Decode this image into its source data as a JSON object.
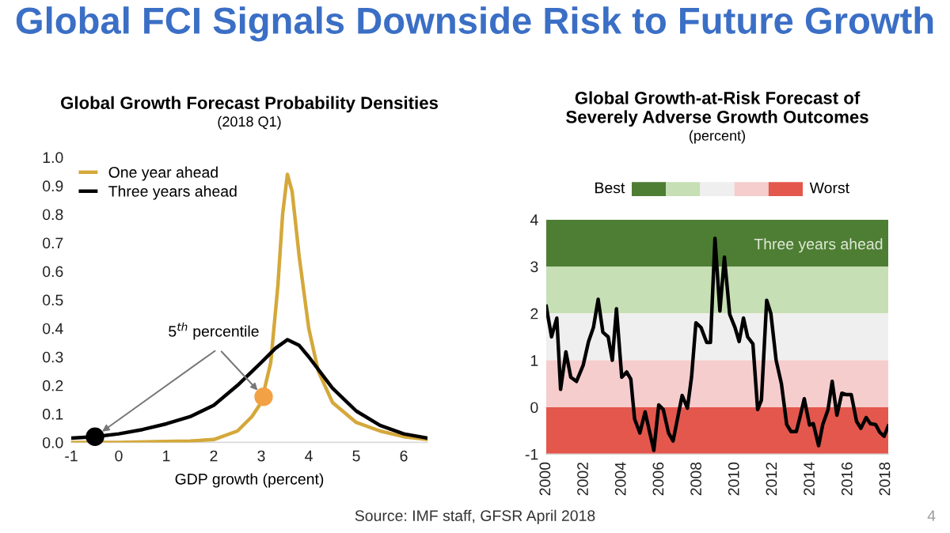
{
  "chart_data": [
    {
      "type": "other",
      "title": "Global FCI Signals Downside Risk to Future Growth",
      "annotations": [
        "Source: IMF staff, GFSR April 2018",
        "4"
      ]
    },
    {
      "type": "line",
      "title": "Global Growth Forecast Probability Densities",
      "subtitle": "(2018 Q1)",
      "xlabel": "GDP growth (percent)",
      "xlim": [
        -1,
        6.5
      ],
      "xticks": [
        -1,
        0,
        1,
        2,
        3,
        4,
        5,
        6
      ],
      "ylim": [
        0,
        1.0
      ],
      "yticks": [
        {
          "value": 0,
          "label": "0.0"
        },
        0.1,
        0.2,
        0.3,
        0.4,
        0.5,
        0.6,
        0.7,
        0.8,
        0.9,
        {
          "value": 1,
          "label": "1.0"
        }
      ],
      "legend": "top left",
      "grid": false,
      "annotations": [
        {
          "text": "5$^{th}$ percentile",
          "x": 3.05,
          "y": 0.16
        }
      ],
      "series": [
        {
          "name": "One year ahead",
          "color": "#d4a83a",
          "x": [
            -1,
            0,
            1,
            1.5,
            2,
            2.5,
            2.8,
            3.0,
            3.2,
            3.35,
            3.45,
            3.55,
            3.65,
            3.8,
            4.0,
            4.2,
            4.5,
            5.0,
            5.5,
            6.0,
            6.5
          ],
          "values": [
            0.0,
            0.0,
            0.003,
            0.005,
            0.01,
            0.04,
            0.09,
            0.14,
            0.28,
            0.55,
            0.8,
            0.94,
            0.88,
            0.65,
            0.4,
            0.25,
            0.14,
            0.07,
            0.04,
            0.02,
            0.01
          ]
        },
        {
          "name": "Three years ahead",
          "color": "#000000",
          "x": [
            -1,
            -0.5,
            0,
            0.5,
            1,
            1.5,
            2,
            2.5,
            3,
            3.3,
            3.55,
            3.8,
            4.0,
            4.5,
            5,
            5.5,
            6,
            6.5
          ],
          "values": [
            0.015,
            0.02,
            0.03,
            0.045,
            0.065,
            0.09,
            0.13,
            0.2,
            0.28,
            0.33,
            0.36,
            0.34,
            0.3,
            0.19,
            0.11,
            0.06,
            0.03,
            0.015
          ]
        },
        {
          "type": "scatter",
          "marker": "circle",
          "color": "#000000",
          "x": [
            -0.5
          ],
          "values": [
            0.02
          ]
        },
        {
          "type": "scatter",
          "marker": "circle",
          "color": "#f2a144",
          "x": [
            3.05
          ],
          "values": [
            0.16
          ]
        }
      ]
    },
    {
      "type": "line",
      "title": "Global Growth-at-Risk Forecast of\nSeverely Adverse Growth Outcomes",
      "subtitle": "(percent)",
      "xlim": [
        2000,
        2018.12
      ],
      "xticks": [
        2000,
        2002,
        2004,
        2006,
        2008,
        2010,
        2012,
        2014,
        2016,
        2018
      ],
      "ylim": [
        -1,
        4
      ],
      "yticks": [
        -1,
        0,
        1,
        2,
        3,
        4
      ],
      "legend": false,
      "grid": false,
      "annotations": [
        "Best",
        "Worst"
      ],
      "bands": [
        {
          "axis": "y",
          "from": 3,
          "to": 4,
          "color": "#4e7d34"
        },
        {
          "axis": "y",
          "from": 2,
          "to": 3,
          "color": "#c6dfb4"
        },
        {
          "axis": "y",
          "from": 1,
          "to": 2,
          "color": "#efefef"
        },
        {
          "axis": "y",
          "from": 0,
          "to": 1,
          "color": "#f5cdcd"
        },
        {
          "axis": "y",
          "from": -1,
          "to": 0,
          "color": "#e4574d"
        }
      ],
      "series": [
        {
          "name": "Three years ahead",
          "color": "#000000",
          "x": [
            2000,
            2000.28,
            2000.56,
            2000.76,
            2001.04,
            2001.3,
            2001.6,
            2001.96,
            2002.24,
            2002.5,
            2002.75,
            2003.0,
            2003.28,
            2003.5,
            2003.72,
            2004.0,
            2004.26,
            2004.48,
            2004.68,
            2004.96,
            2005.24,
            2005.46,
            2005.7,
            2005.96,
            2006.2,
            2006.48,
            2006.72,
            2007.0,
            2007.2,
            2007.48,
            2007.7,
            2007.93,
            2008.2,
            2008.5,
            2008.7,
            2008.94,
            2009.2,
            2009.44,
            2009.72,
            2010.0,
            2010.22,
            2010.45,
            2010.67,
            2010.95,
            2011.2,
            2011.4,
            2011.68,
            2011.9,
            2012.18,
            2012.46,
            2012.74,
            2012.97,
            2013.25,
            2013.45,
            2013.67,
            2013.95,
            2014.15,
            2014.43,
            2014.65,
            2014.93,
            2015.15,
            2015.4,
            2015.66,
            2015.88,
            2016.16,
            2016.44,
            2016.67,
            2016.95,
            2017.17,
            2017.45,
            2017.68,
            2017.9,
            2018.12
          ],
          "values": [
            2.15,
            1.5,
            1.9,
            0.38,
            1.18,
            0.64,
            0.55,
            0.9,
            1.4,
            1.7,
            2.3,
            1.6,
            1.5,
            1.0,
            2.1,
            0.64,
            0.75,
            0.6,
            -0.25,
            -0.55,
            -0.1,
            -0.5,
            -0.92,
            0.05,
            -0.05,
            -0.55,
            -0.72,
            -0.15,
            0.25,
            -0.02,
            0.65,
            1.8,
            1.7,
            1.38,
            1.38,
            3.6,
            2.05,
            3.2,
            1.98,
            1.7,
            1.4,
            1.9,
            1.5,
            1.35,
            -0.05,
            0.15,
            2.28,
            2.0,
            1.0,
            0.5,
            -0.37,
            -0.52,
            -0.52,
            -0.2,
            0.18,
            -0.38,
            -0.35,
            -0.82,
            -0.37,
            -0.05,
            0.55,
            -0.17,
            0.3,
            0.27,
            0.27,
            -0.3,
            -0.45,
            -0.22,
            -0.35,
            -0.37,
            -0.54,
            -0.62,
            -0.4
          ]
        }
      ]
    }
  ]
}
